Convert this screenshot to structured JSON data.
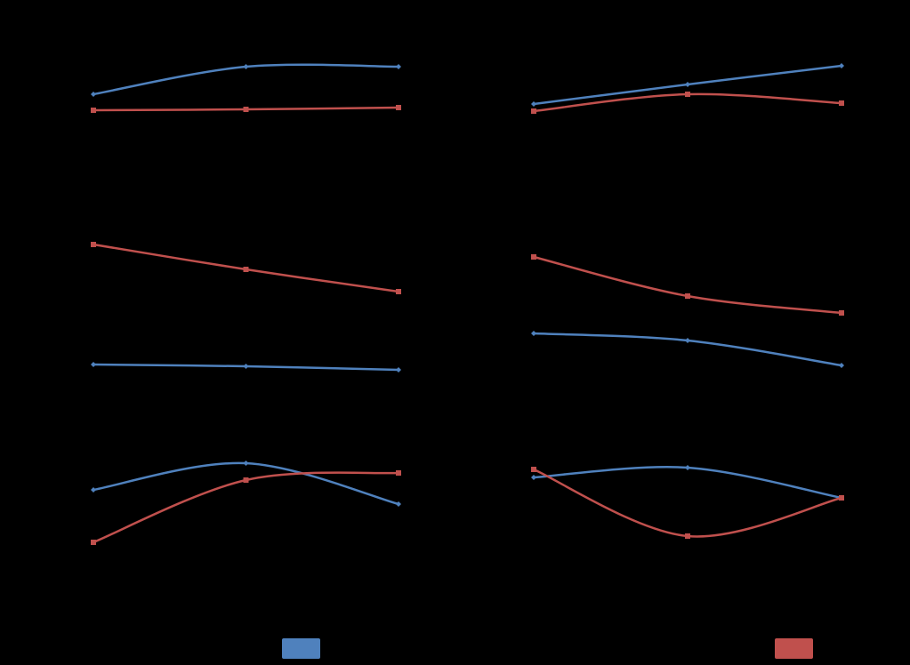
{
  "chart_data": [
    {
      "type": "line",
      "categories": [
        null,
        null,
        null
      ],
      "ylim": [
        0,
        120
      ],
      "series": [
        {
          "color": "#4f81bd",
          "values": [
            54,
            85,
            85
          ]
        },
        {
          "color": "#c0504d",
          "values": [
            36,
            37,
            39
          ]
        }
      ]
    },
    {
      "type": "line",
      "categories": [
        null,
        null,
        null
      ],
      "ylim": [
        0,
        120
      ],
      "series": [
        {
          "color": "#4f81bd",
          "values": [
            43,
            65,
            86
          ]
        },
        {
          "color": "#c0504d",
          "values": [
            35,
            54,
            44
          ]
        }
      ]
    },
    {
      "type": "line",
      "categories": [
        null,
        null,
        null
      ],
      "ylim": [
        0,
        180
      ],
      "series": [
        {
          "color": "#c0504d",
          "values": [
            155,
            127,
            102
          ]
        },
        {
          "color": "#4f81bd",
          "values": [
            20,
            18,
            14
          ]
        }
      ]
    },
    {
      "type": "line",
      "categories": [
        null,
        null,
        null
      ],
      "ylim": [
        0,
        180
      ],
      "series": [
        {
          "color": "#c0504d",
          "values": [
            141,
            97,
            78
          ]
        },
        {
          "color": "#4f81bd",
          "values": [
            55,
            47,
            19
          ]
        }
      ]
    },
    {
      "type": "line",
      "categories": [
        null,
        null,
        null
      ],
      "ylim": [
        0,
        130
      ],
      "series": [
        {
          "color": "#4f81bd",
          "values": [
            79,
            109,
            63
          ]
        },
        {
          "color": "#c0504d",
          "values": [
            20,
            90,
            98
          ]
        }
      ]
    },
    {
      "type": "line",
      "categories": [
        null,
        null,
        null
      ],
      "ylim": [
        0,
        130
      ],
      "series": [
        {
          "color": "#4f81bd",
          "values": [
            93,
            104,
            70
          ]
        },
        {
          "color": "#c0504d",
          "values": [
            102,
            27,
            70
          ]
        }
      ]
    }
  ]
}
